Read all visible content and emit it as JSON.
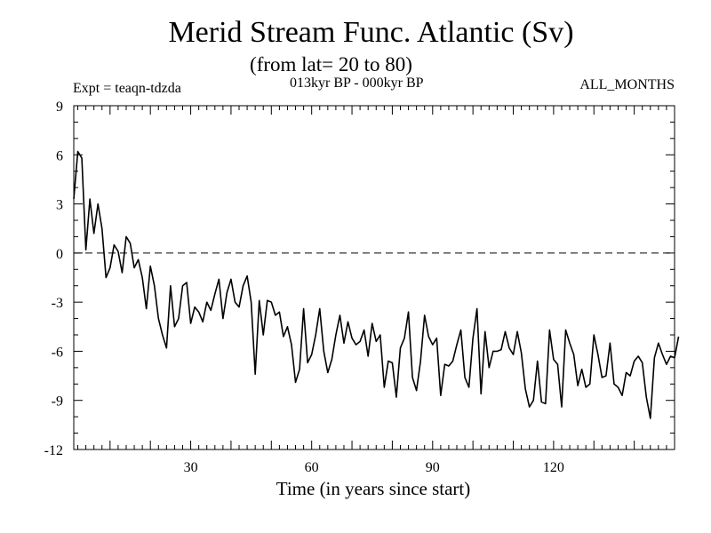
{
  "chart_data": {
    "type": "line",
    "title": "Merid Stream Func. Atlantic (Sv)",
    "subtitle": "(from lat= 20 to 80)",
    "experiment": "Expt = teaqn-tdzda",
    "period": "013kyr BP - 000kyr BP",
    "season": "ALL_MONTHS",
    "xlabel": "Time (in years since start)",
    "ylabel": "",
    "xlim": [
      1,
      150
    ],
    "ylim": [
      -12,
      9
    ],
    "x_ticks": [
      30,
      60,
      90,
      120
    ],
    "y_ticks": [
      9,
      6,
      3,
      0,
      -3,
      -6,
      -9,
      -12
    ],
    "reference_line": {
      "y": 0,
      "style": "dashed"
    },
    "series": [
      {
        "name": "Merid Stream Func. Atlantic",
        "x_start": 1,
        "x_step": 1,
        "values": [
          3.3,
          6.2,
          5.8,
          0.2,
          3.3,
          1.2,
          3.0,
          1.5,
          -1.5,
          -0.9,
          0.5,
          0.1,
          -1.2,
          1.0,
          0.6,
          -0.9,
          -0.4,
          -1.5,
          -3.4,
          -0.8,
          -2.0,
          -4.0,
          -5.0,
          -5.8,
          -2.0,
          -4.5,
          -4.0,
          -2.0,
          -1.8,
          -4.3,
          -3.3,
          -3.6,
          -4.2,
          -3.0,
          -3.5,
          -2.5,
          -1.6,
          -4.0,
          -2.4,
          -1.6,
          -3.0,
          -3.3,
          -2.0,
          -1.4,
          -3.0,
          -7.4,
          -2.9,
          -5.0,
          -2.9,
          -3.0,
          -3.8,
          -3.6,
          -5.1,
          -4.5,
          -5.6,
          -7.9,
          -7.1,
          -3.4,
          -6.7,
          -6.2,
          -5.0,
          -3.4,
          -6.0,
          -7.3,
          -6.5,
          -5.0,
          -3.8,
          -5.5,
          -4.2,
          -5.2,
          -5.6,
          -5.4,
          -4.7,
          -6.3,
          -4.3,
          -5.4,
          -5.0,
          -8.2,
          -6.6,
          -6.7,
          -8.8,
          -5.8,
          -5.2,
          -3.6,
          -7.6,
          -8.4,
          -6.6,
          -3.8,
          -5.1,
          -5.6,
          -5.2,
          -8.7,
          -6.8,
          -6.9,
          -6.6,
          -5.6,
          -4.7,
          -7.6,
          -8.2,
          -5.2,
          -3.4,
          -8.6,
          -4.8,
          -7.0,
          -6.0,
          -6.0,
          -5.9,
          -4.8,
          -5.8,
          -6.2,
          -4.8,
          -6.1,
          -8.3,
          -9.4,
          -9.0,
          -6.6,
          -9.1,
          -9.2,
          -4.7,
          -6.5,
          -6.8,
          -9.4,
          -4.7,
          -5.5,
          -6.2,
          -8.1,
          -7.1,
          -8.2,
          -8.0,
          -5.0,
          -6.2,
          -7.6,
          -7.5,
          -5.5,
          -8.0,
          -8.2,
          -8.7,
          -7.3,
          -7.5,
          -6.6,
          -6.3,
          -6.7,
          -8.8,
          -10.1,
          -6.4,
          -5.5,
          -6.2,
          -6.8,
          -6.3,
          -6.4,
          -5.1
        ]
      }
    ]
  }
}
